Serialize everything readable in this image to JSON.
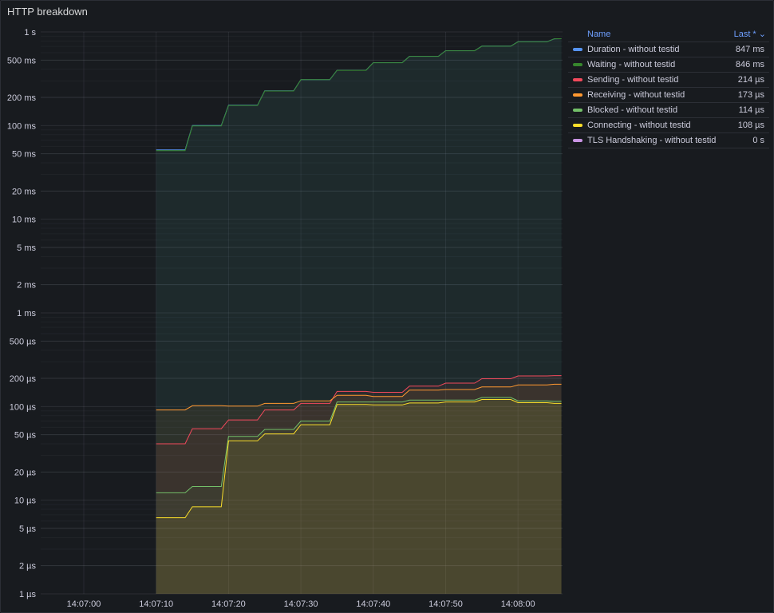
{
  "panel": {
    "title": "HTTP breakdown"
  },
  "legend": {
    "name_header": "Name",
    "last_header": "Last *",
    "sort_icon": "chevron-down-icon",
    "items": [
      {
        "name": "Duration - without testid",
        "last": "847 ms",
        "color": "#5794f2"
      },
      {
        "name": "Waiting - without testid",
        "last": "846 ms",
        "color": "#37872d"
      },
      {
        "name": "Sending - without testid",
        "last": "214 µs",
        "color": "#f2495c"
      },
      {
        "name": "Receiving - without testid",
        "last": "173 µs",
        "color": "#ff9830"
      },
      {
        "name": "Blocked - without testid",
        "last": "114 µs",
        "color": "#73bf69"
      },
      {
        "name": "Connecting - without testid",
        "last": "108 µs",
        "color": "#fade2a"
      },
      {
        "name": "TLS Handshaking - without testid",
        "last": "0 s",
        "color": "#ca95e5"
      }
    ]
  },
  "chart_data": {
    "type": "line",
    "title": "HTTP breakdown",
    "y_scale": "log",
    "y_unit": "seconds",
    "ylim": [
      1e-06,
      1
    ],
    "y_ticks": [
      {
        "v": 1,
        "label": "1 s"
      },
      {
        "v": 0.5,
        "label": "500 ms"
      },
      {
        "v": 0.2,
        "label": "200 ms"
      },
      {
        "v": 0.1,
        "label": "100 ms"
      },
      {
        "v": 0.05,
        "label": "50 ms"
      },
      {
        "v": 0.02,
        "label": "20 ms"
      },
      {
        "v": 0.01,
        "label": "10 ms"
      },
      {
        "v": 0.005,
        "label": "5 ms"
      },
      {
        "v": 0.002,
        "label": "2 ms"
      },
      {
        "v": 0.001,
        "label": "1 ms"
      },
      {
        "v": 0.0005,
        "label": "500 µs"
      },
      {
        "v": 0.0002,
        "label": "200 µs"
      },
      {
        "v": 0.0001,
        "label": "100 µs"
      },
      {
        "v": 5e-05,
        "label": "50 µs"
      },
      {
        "v": 2e-05,
        "label": "20 µs"
      },
      {
        "v": 1e-05,
        "label": "10 µs"
      },
      {
        "v": 5e-06,
        "label": "5 µs"
      },
      {
        "v": 2e-06,
        "label": "2 µs"
      },
      {
        "v": 1e-06,
        "label": "1 µs"
      }
    ],
    "x_ticks": [
      "14:07:00",
      "14:07:10",
      "14:07:20",
      "14:07:30",
      "14:07:40",
      "14:07:50",
      "14:08:00"
    ],
    "x": [
      "14:07:10",
      "14:07:14",
      "14:07:15",
      "14:07:19",
      "14:07:20",
      "14:07:24",
      "14:07:25",
      "14:07:29",
      "14:07:30",
      "14:07:34",
      "14:07:35",
      "14:07:39",
      "14:07:40",
      "14:07:44",
      "14:07:45",
      "14:07:49",
      "14:07:50",
      "14:07:54",
      "14:07:55",
      "14:07:59",
      "14:08:00",
      "14:08:04",
      "14:08:05",
      "14:08:06"
    ],
    "series": [
      {
        "name": "Duration - without testid",
        "color": "#5794f2",
        "values": [
          0.055,
          0.055,
          0.1,
          0.1,
          0.165,
          0.165,
          0.235,
          0.235,
          0.31,
          0.31,
          0.39,
          0.39,
          0.47,
          0.47,
          0.55,
          0.55,
          0.63,
          0.63,
          0.705,
          0.705,
          0.785,
          0.785,
          0.845,
          0.847
        ]
      },
      {
        "name": "Waiting - without testid",
        "color": "#37872d",
        "values": [
          0.054,
          0.054,
          0.099,
          0.099,
          0.164,
          0.164,
          0.234,
          0.234,
          0.309,
          0.309,
          0.389,
          0.389,
          0.469,
          0.469,
          0.549,
          0.549,
          0.629,
          0.629,
          0.704,
          0.704,
          0.784,
          0.784,
          0.844,
          0.846
        ]
      },
      {
        "name": "Sending - without testid",
        "color": "#f2495c",
        "values": [
          4e-05,
          4e-05,
          5.8e-05,
          5.8e-05,
          7.2e-05,
          7.2e-05,
          9.2e-05,
          9.2e-05,
          0.000108,
          0.000108,
          0.000145,
          0.000145,
          0.000142,
          0.000142,
          0.000165,
          0.000165,
          0.000178,
          0.000178,
          0.000198,
          0.000198,
          0.000212,
          0.000212,
          0.000214,
          0.000214
        ]
      },
      {
        "name": "Receiving - without testid",
        "color": "#ff9830",
        "values": [
          9.2e-05,
          9.2e-05,
          0.000102,
          0.000102,
          0.000101,
          0.000101,
          0.000108,
          0.000108,
          0.000115,
          0.000115,
          0.000132,
          0.000132,
          0.000128,
          0.000128,
          0.00015,
          0.00015,
          0.000152,
          0.000152,
          0.000162,
          0.000162,
          0.00017,
          0.00017,
          0.000173,
          0.000173
        ]
      },
      {
        "name": "Blocked - without testid",
        "color": "#73bf69",
        "values": [
          1.2e-05,
          1.2e-05,
          1.4e-05,
          1.4e-05,
          4.8e-05,
          4.8e-05,
          5.7e-05,
          5.7e-05,
          7e-05,
          7e-05,
          0.000112,
          0.000112,
          0.000112,
          0.000112,
          0.000117,
          0.000117,
          0.000117,
          0.000117,
          0.000125,
          0.000125,
          0.000115,
          0.000115,
          0.000114,
          0.000114
        ]
      },
      {
        "name": "Connecting - without testid",
        "color": "#fade2a",
        "values": [
          6.5e-06,
          6.5e-06,
          8.5e-06,
          8.5e-06,
          4.3e-05,
          4.3e-05,
          5.1e-05,
          5.1e-05,
          6.4e-05,
          6.4e-05,
          0.000105,
          0.000105,
          0.000104,
          0.000104,
          0.000109,
          0.000109,
          0.000112,
          0.000112,
          0.000119,
          0.000119,
          0.00011,
          0.00011,
          0.000108,
          0.000108
        ]
      },
      {
        "name": "TLS Handshaking - without testid",
        "color": "#ca95e5",
        "values": [
          0,
          0,
          0,
          0,
          0,
          0,
          0,
          0,
          0,
          0,
          0,
          0,
          0,
          0,
          0,
          0,
          0,
          0,
          0,
          0,
          0,
          0,
          0,
          0
        ]
      }
    ],
    "legend_position": "right"
  }
}
